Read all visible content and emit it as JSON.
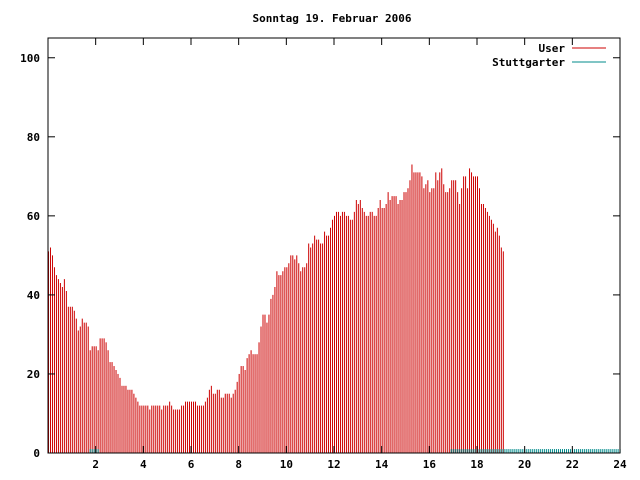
{
  "chart_data": {
    "type": "bar",
    "title": "Sonntag 19. Februar 2006",
    "xlabel": "",
    "ylabel": "",
    "xlim": [
      0,
      24
    ],
    "ylim": [
      0,
      105
    ],
    "x_ticks": [
      "2",
      "4",
      "6",
      "8",
      "10",
      "12",
      "14",
      "16",
      "18",
      "20",
      "22",
      "24"
    ],
    "y_ticks": [
      "0",
      "20",
      "40",
      "60",
      "80",
      "100"
    ],
    "grid": false,
    "legend_position": "top-right",
    "colors": {
      "user": "#cc0000",
      "stuttgarter": "#008b8b",
      "axis": "#000000"
    },
    "series": [
      {
        "name": "User",
        "interval_minutes": 5,
        "start_hour": 0.0,
        "values": [
          51,
          52,
          50,
          47,
          45,
          44,
          43,
          42,
          44,
          41,
          37,
          37,
          37,
          36,
          34,
          31,
          32,
          34,
          33,
          33,
          32,
          26,
          27,
          27,
          27,
          26,
          29,
          29,
          29,
          28,
          26,
          23,
          23,
          22,
          21,
          20,
          19,
          17,
          17,
          17,
          16,
          16,
          16,
          15,
          14,
          13,
          12,
          12,
          12,
          12,
          12,
          11,
          12,
          12,
          12,
          12,
          12,
          11,
          12,
          12,
          12,
          13,
          12,
          11,
          11,
          11,
          11,
          12,
          12,
          13,
          13,
          13,
          13,
          13,
          13,
          12,
          12,
          12,
          12,
          13,
          14,
          16,
          17,
          15,
          15,
          16,
          16,
          14,
          14,
          15,
          15,
          15,
          14,
          15,
          16,
          18,
          20,
          22,
          22,
          21,
          24,
          25,
          26,
          25,
          25,
          25,
          28,
          32,
          35,
          35,
          33,
          35,
          39,
          40,
          42,
          46,
          45,
          45,
          46,
          47,
          47,
          48,
          50,
          50,
          49,
          50,
          48,
          46,
          47,
          47,
          48,
          53,
          52,
          53,
          55,
          54,
          54,
          53,
          53,
          56,
          55,
          55,
          57,
          59,
          60,
          61,
          61,
          60,
          61,
          61,
          60,
          60,
          59,
          59,
          61,
          64,
          63,
          64,
          62,
          61,
          60,
          60,
          61,
          61,
          60,
          60,
          62,
          64,
          62,
          62,
          63,
          66,
          64,
          65,
          65,
          65,
          63,
          64,
          64,
          66,
          66,
          67,
          69,
          73,
          71,
          71,
          71,
          71,
          70,
          67,
          68,
          69,
          66,
          67,
          67,
          71,
          69,
          71,
          72,
          68,
          66,
          66,
          67,
          69,
          69,
          69,
          66,
          63,
          67,
          70,
          70,
          67,
          72,
          71,
          70,
          70,
          70,
          67,
          63,
          63,
          62,
          61,
          60,
          59,
          58,
          56,
          57,
          55,
          52,
          51
        ]
      },
      {
        "name": "Stuttgarter",
        "segments": [
          {
            "x_start": 1.75,
            "x_end": 2.15,
            "value": 1
          },
          {
            "x_start": 16.9,
            "x_end": 24.0,
            "value": 1
          }
        ]
      }
    ]
  }
}
